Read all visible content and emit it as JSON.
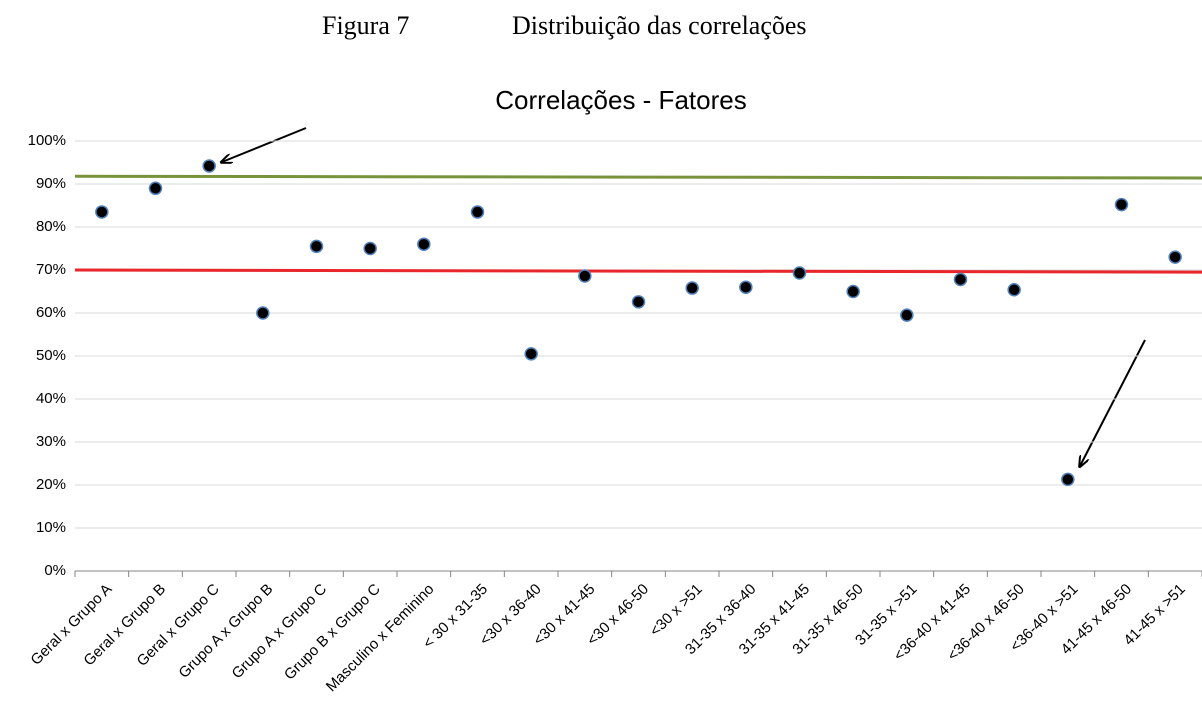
{
  "header": {
    "figure": "Figura 7",
    "caption": "Distribuição das correlações"
  },
  "chart_data": {
    "type": "scatter",
    "title": "Correlações - Fatores",
    "categories": [
      "Geral x Grupo A",
      "Geral x Grupo B",
      "Geral x Grupo C",
      "Grupo A x Grupo B",
      "Grupo A x Grupo C",
      "Grupo B x Grupo C",
      "Masculino x Feminino",
      "< 30 x 31-35",
      "<30 x 36-40",
      "<30 x 41-45",
      "<30 x 46-50",
      "<30 x >51",
      "31-35 x 36-40",
      "31-35 x 41-45",
      "31-35 x 46-50",
      "31-35 x >51",
      "<36-40 x 41-45",
      "<36-40 x 46-50",
      "<36-40 x >51",
      "41-45 x 46-50",
      "41-45 x >51"
    ],
    "values": [
      83.5,
      89,
      94.2,
      60,
      75.5,
      75,
      76,
      83.5,
      50.5,
      68.6,
      62.6,
      65.8,
      66,
      69.3,
      65,
      59.5,
      67.8,
      65.4,
      21.3,
      85.2,
      73
    ],
    "color": "#000000",
    "edge_color": "#4f81bd",
    "reference_lines": [
      {
        "color": "#77933c",
        "values": [
          91.8,
          91.4
        ]
      },
      {
        "color": "#e8262b",
        "values": [
          70,
          69.5
        ]
      }
    ],
    "ylim": [
      0,
      100
    ],
    "yticks": [
      {
        "value": 0,
        "label": "0%"
      },
      {
        "value": 10,
        "label": "10%"
      },
      {
        "value": 20,
        "label": "20%"
      },
      {
        "value": 30,
        "label": "30%"
      },
      {
        "value": 40,
        "label": "40%"
      },
      {
        "value": 50,
        "label": "50%"
      },
      {
        "value": 60,
        "label": "60%"
      },
      {
        "value": 70,
        "label": "70%"
      },
      {
        "value": 80,
        "label": "80%"
      },
      {
        "value": 90,
        "label": "90%"
      },
      {
        "value": 100,
        "label": "100%"
      }
    ],
    "grid": true
  }
}
